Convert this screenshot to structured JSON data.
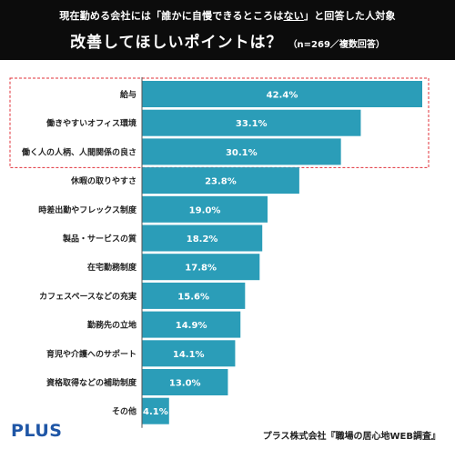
{
  "header": {
    "question_parts": [
      "現在勤める会社には「誰かに自慢できるところは",
      "ない",
      "」と回答した人対象"
    ],
    "title": "改善してほしいポイントは？",
    "note": "（n=269／複数回答）"
  },
  "colors": {
    "bar": "#2b9db8",
    "header_bg": "#0c0c0c",
    "highlight": "#e0303a",
    "axis": "#555555",
    "logo": "#1f56a6"
  },
  "footer": {
    "logo": "PLUS",
    "source": "プラス株式会社『職場の居心地WEB調査』"
  },
  "chart_data": {
    "type": "bar",
    "orientation": "horizontal",
    "categories": [
      "給与",
      "働きやすいオフィス環境",
      "働く人の人柄、人間関係の良さ",
      "休暇の取りやすさ",
      "時差出勤やフレックス制度",
      "製品・サービスの質",
      "在宅勤務制度",
      "カフェスペースなどの充実",
      "勤務先の立地",
      "育児や介護へのサポート",
      "資格取得などの補助制度",
      "その他"
    ],
    "values": [
      42.4,
      33.1,
      30.1,
      23.8,
      19.0,
      18.2,
      17.8,
      15.6,
      14.9,
      14.1,
      13.0,
      4.1
    ],
    "value_labels": [
      "42.4%",
      "33.1%",
      "30.1%",
      "23.8%",
      "19.0%",
      "18.2%",
      "17.8%",
      "15.6%",
      "14.9%",
      "14.1%",
      "13.0%",
      "4.1%"
    ],
    "highlighted_categories": [
      "給与",
      "働きやすいオフィス環境",
      "働く人の人柄、人間関係の良さ"
    ],
    "xlim": [
      0,
      42.4
    ],
    "grid": false,
    "legend": "none"
  }
}
